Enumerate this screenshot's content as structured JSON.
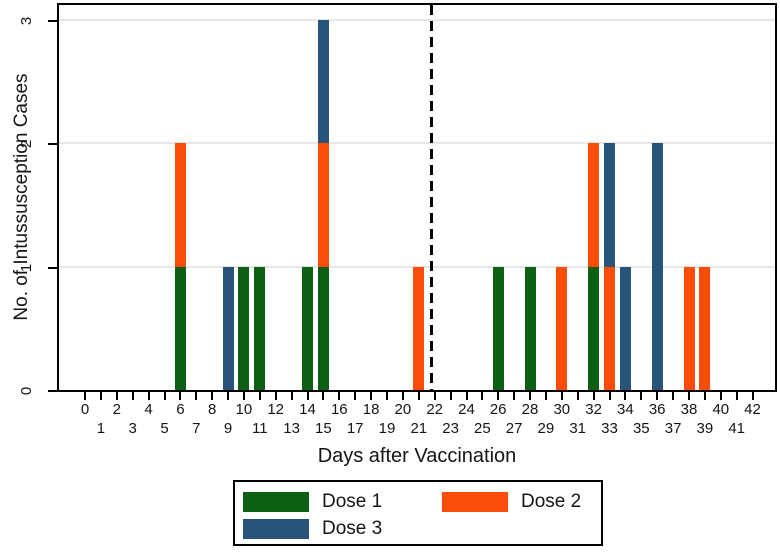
{
  "figure": {
    "background": "#ffffff",
    "axis_color": "#000000",
    "grid_color": "#e7e7e7",
    "text_color": "#151515"
  },
  "chart_data": {
    "type": "bar",
    "stacked": true,
    "title": "",
    "xlabel": "Days after Vaccination",
    "ylabel": "No. of Intussusception Cases",
    "xlim": [
      0,
      42
    ],
    "ylim": [
      0,
      3
    ],
    "xticks": [
      0,
      1,
      2,
      3,
      4,
      5,
      6,
      7,
      8,
      9,
      10,
      11,
      12,
      13,
      14,
      15,
      16,
      17,
      18,
      19,
      20,
      21,
      22,
      23,
      24,
      25,
      26,
      27,
      28,
      29,
      30,
      31,
      32,
      33,
      34,
      35,
      36,
      37,
      38,
      39,
      40,
      41,
      42
    ],
    "yticks": [
      0,
      1,
      2,
      3
    ],
    "grid": "horizontal gridlines at 1, 2, 3",
    "x_tick_label_layout": "even days on upper row, odd days on lower row",
    "legend_position": "below plot",
    "reference_line": {
      "style": "dashed",
      "color": "#000000",
      "x_day": 21.8
    },
    "series": [
      {
        "name": "Dose 1",
        "color": "#0d5f14",
        "case_days": [
          6,
          10,
          11,
          14,
          15,
          26,
          28,
          32
        ]
      },
      {
        "name": "Dose 2",
        "color": "#fa4d0a",
        "case_days": [
          6,
          15,
          21,
          30,
          32,
          33,
          38,
          39
        ]
      },
      {
        "name": "Dose 3",
        "color": "#28547a",
        "case_days": [
          9,
          15,
          33,
          34,
          36,
          36
        ]
      }
    ]
  }
}
